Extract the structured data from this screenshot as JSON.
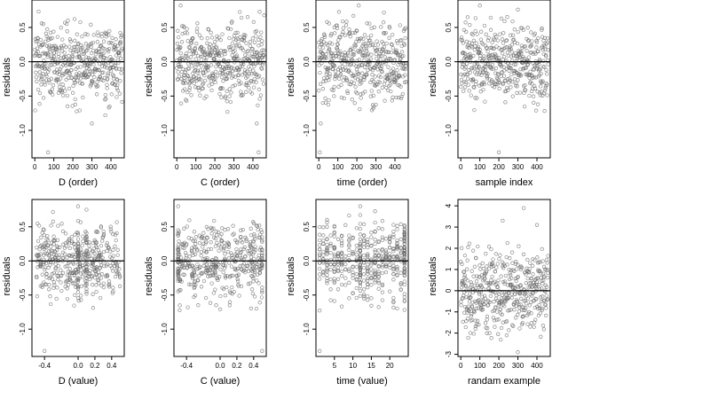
{
  "chart_data": [
    {
      "type": "scatter",
      "title": "",
      "xlabel": "D (order)",
      "ylabel": "residuals",
      "xlim": [
        -15,
        470
      ],
      "ylim": [
        -1.4,
        0.9
      ],
      "xticks": [
        0,
        100,
        200,
        300,
        400
      ],
      "yticks": [
        -1.0,
        -0.5,
        0.0,
        0.5
      ],
      "ytick_labels": [
        "-1.0",
        "-0.5",
        "0.0",
        "0.5"
      ],
      "hline": 0,
      "x_pattern": "index",
      "n_points": 460,
      "spread": 0.28,
      "outliers": [
        [
          70,
          -1.32
        ],
        [
          300,
          -0.9
        ],
        [
          370,
          -0.78
        ]
      ]
    },
    {
      "type": "scatter",
      "title": "",
      "xlabel": "C (order)",
      "ylabel": "residuals",
      "xlim": [
        -15,
        470
      ],
      "ylim": [
        -1.4,
        0.9
      ],
      "xticks": [
        0,
        100,
        200,
        300,
        400
      ],
      "yticks": [
        -1.0,
        -0.5,
        0.0,
        0.5
      ],
      "ytick_labels": [
        "-1.0",
        "-0.5",
        "0.0",
        "0.5"
      ],
      "hline": 0,
      "x_pattern": "index",
      "n_points": 460,
      "spread": 0.28,
      "outliers": [
        [
          20,
          0.82
        ],
        [
          430,
          -1.32
        ],
        [
          420,
          -0.9
        ]
      ]
    },
    {
      "type": "scatter",
      "title": "",
      "xlabel": "time (order)",
      "ylabel": "residuals",
      "xlim": [
        -15,
        470
      ],
      "ylim": [
        -1.4,
        0.9
      ],
      "xticks": [
        0,
        100,
        200,
        300,
        400
      ],
      "yticks": [
        -1.0,
        -0.5,
        0.0,
        0.5
      ],
      "ytick_labels": [
        "-1.0",
        "-0.5",
        "0.0",
        "0.5"
      ],
      "hline": 0,
      "x_pattern": "index",
      "n_points": 460,
      "spread": 0.28,
      "outliers": [
        [
          5,
          -1.32
        ],
        [
          10,
          -0.9
        ],
        [
          210,
          0.82
        ]
      ]
    },
    {
      "type": "scatter",
      "title": "",
      "xlabel": "sample index",
      "ylabel": "residuals",
      "xlim": [
        -15,
        470
      ],
      "ylim": [
        -1.4,
        0.9
      ],
      "xticks": [
        0,
        100,
        200,
        300,
        400
      ],
      "yticks": [
        -1.0,
        -0.5,
        0.0,
        0.5
      ],
      "ytick_labels": [
        "-1.0",
        "-0.5",
        "0.0",
        "0.5"
      ],
      "hline": 0,
      "x_pattern": "index",
      "n_points": 460,
      "spread": 0.28,
      "outliers": [
        [
          200,
          -1.32
        ],
        [
          100,
          0.82
        ],
        [
          300,
          0.76
        ]
      ]
    },
    {
      "type": "scatter",
      "title": "",
      "xlabel": "D (value)",
      "ylabel": "residuals",
      "xlim": [
        -0.55,
        0.55
      ],
      "ylim": [
        -1.4,
        0.9
      ],
      "xticks": [
        -0.4,
        0.0,
        0.2,
        0.4
      ],
      "xtick_labels": [
        "-0.4",
        "0.0",
        "0.2",
        "0.4"
      ],
      "yticks": [
        -1.0,
        -0.5,
        0.0,
        0.5
      ],
      "ytick_labels": [
        "-1.0",
        "-0.5",
        "0.0",
        "0.5"
      ],
      "hline": 0,
      "x_pattern": "uniform",
      "x_range": [
        -0.5,
        0.5
      ],
      "n_points": 460,
      "spread": 0.28,
      "columns": [
        0.0,
        0.1
      ],
      "outliers": [
        [
          -0.4,
          -1.32
        ],
        [
          0.0,
          0.8
        ],
        [
          0.1,
          0.75
        ]
      ]
    },
    {
      "type": "scatter",
      "title": "",
      "xlabel": "C (value)",
      "ylabel": "residuals",
      "xlim": [
        -0.55,
        0.55
      ],
      "ylim": [
        -1.4,
        0.9
      ],
      "xticks": [
        -0.4,
        0.0,
        0.2,
        0.4
      ],
      "xtick_labels": [
        "-0.4",
        "0.0",
        "0.2",
        "0.4"
      ],
      "yticks": [
        -1.0,
        -0.5,
        0.0,
        0.5
      ],
      "ytick_labels": [
        "-1.0",
        "-0.5",
        "0.0",
        "0.5"
      ],
      "hline": 0,
      "x_pattern": "uniform",
      "x_range": [
        -0.5,
        0.5
      ],
      "n_points": 460,
      "spread": 0.28,
      "columns": [
        -0.5,
        0.5
      ],
      "outliers": [
        [
          -0.5,
          0.8
        ],
        [
          0.5,
          -1.32
        ]
      ]
    },
    {
      "type": "scatter",
      "title": "",
      "xlabel": "time (value)",
      "ylabel": "residuals",
      "xlim": [
        0,
        25
      ],
      "ylim": [
        -1.4,
        0.9
      ],
      "xticks": [
        5,
        10,
        15,
        20
      ],
      "yticks": [
        -1.0,
        -0.5,
        0.0,
        0.5
      ],
      "ytick_labels": [
        "-1.0",
        "-0.5",
        "0.0",
        "0.5"
      ],
      "hline": 0,
      "x_pattern": "integer",
      "x_range": [
        1,
        24
      ],
      "n_points": 460,
      "spread": 0.28,
      "columns": [
        12,
        24
      ],
      "outliers": [
        [
          1,
          -1.32
        ],
        [
          12,
          0.8
        ]
      ]
    },
    {
      "type": "scatter",
      "title": "",
      "xlabel": "randam example",
      "ylabel": "residuals",
      "xlim": [
        -15,
        470
      ],
      "ylim": [
        -3.1,
        4.3
      ],
      "xticks": [
        0,
        100,
        200,
        300,
        400
      ],
      "yticks": [
        -3,
        -2,
        -1,
        0,
        1,
        2,
        3,
        4
      ],
      "ytick_labels": [
        "-3",
        "-2",
        "-1",
        "0",
        "1",
        "2",
        "3",
        "4"
      ],
      "hline": 0,
      "x_pattern": "index",
      "n_points": 460,
      "spread": 1.0,
      "outliers": [
        [
          330,
          3.9
        ],
        [
          220,
          3.3
        ],
        [
          300,
          -2.9
        ],
        [
          400,
          3.1
        ]
      ]
    }
  ]
}
